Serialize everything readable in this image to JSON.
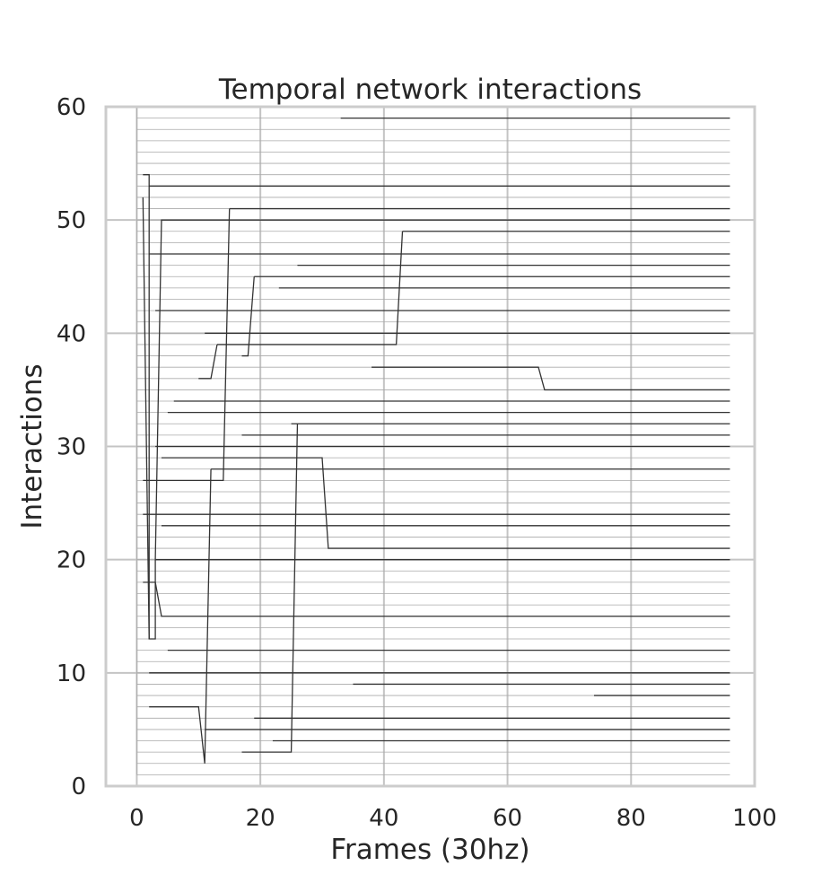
{
  "chart_data": {
    "type": "line",
    "title": "Temporal network interactions",
    "xlabel": "Frames (30hz)",
    "ylabel": "Interactions",
    "xlim": [
      -5,
      100
    ],
    "ylim": [
      0,
      60
    ],
    "x_ticks": [
      0,
      20,
      40,
      60,
      80,
      100
    ],
    "y_ticks": [
      0,
      10,
      20,
      30,
      40,
      50,
      60
    ],
    "grid": true,
    "baseline_lines": {
      "y_from": 1,
      "y_to": 60,
      "x_start": 0,
      "x_end": 96,
      "color": "#aaaaaa"
    },
    "series": [
      {
        "color": "#333333",
        "points": [
          [
            23,
            60
          ],
          [
            96,
            60
          ]
        ]
      },
      {
        "color": "#333333",
        "points": [
          [
            33,
            59
          ],
          [
            96,
            59
          ]
        ]
      },
      {
        "color": "#333333",
        "points": [
          [
            1,
            54
          ],
          [
            2,
            54
          ],
          [
            2,
            13
          ],
          [
            3,
            13
          ],
          [
            3,
            20
          ],
          [
            3,
            18
          ],
          [
            1,
            18
          ]
        ]
      },
      {
        "color": "#333333",
        "points": [
          [
            1,
            52
          ],
          [
            2,
            13
          ]
        ]
      },
      {
        "color": "#333333",
        "points": [
          [
            2,
            53
          ],
          [
            96,
            53
          ]
        ]
      },
      {
        "color": "#333333",
        "points": [
          [
            15,
            51
          ],
          [
            96,
            51
          ]
        ]
      },
      {
        "color": "#333333",
        "points": [
          [
            3,
            20
          ],
          [
            4,
            50
          ],
          [
            96,
            50
          ]
        ]
      },
      {
        "color": "#333333",
        "points": [
          [
            43,
            49
          ],
          [
            96,
            49
          ]
        ]
      },
      {
        "color": "#333333",
        "points": [
          [
            2,
            47
          ],
          [
            96,
            47
          ]
        ]
      },
      {
        "color": "#333333",
        "points": [
          [
            26,
            46
          ],
          [
            96,
            46
          ]
        ]
      },
      {
        "color": "#333333",
        "points": [
          [
            19,
            45
          ],
          [
            96,
            45
          ]
        ]
      },
      {
        "color": "#333333",
        "points": [
          [
            23,
            44
          ],
          [
            96,
            44
          ]
        ]
      },
      {
        "color": "#333333",
        "points": [
          [
            3,
            42
          ],
          [
            96,
            42
          ]
        ]
      },
      {
        "color": "#333333",
        "points": [
          [
            11,
            40
          ],
          [
            96,
            40
          ]
        ]
      },
      {
        "color": "#333333",
        "points": [
          [
            13,
            39
          ],
          [
            42,
            39
          ],
          [
            43,
            49
          ]
        ]
      },
      {
        "color": "#333333",
        "points": [
          [
            17,
            38
          ],
          [
            18,
            38
          ],
          [
            19,
            45
          ]
        ]
      },
      {
        "color": "#333333",
        "points": [
          [
            38,
            37
          ],
          [
            65,
            37
          ],
          [
            66,
            35
          ],
          [
            96,
            35
          ]
        ]
      },
      {
        "color": "#333333",
        "points": [
          [
            10,
            36
          ],
          [
            12,
            36
          ],
          [
            13,
            39
          ]
        ]
      },
      {
        "color": "#333333",
        "points": [
          [
            6,
            34
          ],
          [
            96,
            34
          ]
        ]
      },
      {
        "color": "#333333",
        "points": [
          [
            5,
            33
          ],
          [
            96,
            33
          ]
        ]
      },
      {
        "color": "#333333",
        "points": [
          [
            25,
            32
          ],
          [
            26,
            32
          ],
          [
            96,
            32
          ]
        ]
      },
      {
        "color": "#333333",
        "points": [
          [
            17,
            31
          ],
          [
            96,
            31
          ]
        ]
      },
      {
        "color": "#333333",
        "points": [
          [
            3,
            30
          ],
          [
            96,
            30
          ]
        ]
      },
      {
        "color": "#333333",
        "points": [
          [
            4,
            29
          ],
          [
            30,
            29
          ],
          [
            31,
            21
          ],
          [
            96,
            21
          ]
        ]
      },
      {
        "color": "#333333",
        "points": [
          [
            12,
            28
          ],
          [
            96,
            28
          ]
        ]
      },
      {
        "color": "#333333",
        "points": [
          [
            1,
            27
          ],
          [
            14,
            27
          ],
          [
            15,
            51
          ]
        ]
      },
      {
        "color": "#333333",
        "points": [
          [
            1,
            24
          ],
          [
            96,
            24
          ]
        ]
      },
      {
        "color": "#333333",
        "points": [
          [
            4,
            23
          ],
          [
            96,
            23
          ]
        ]
      },
      {
        "color": "#333333",
        "points": [
          [
            3,
            20
          ],
          [
            96,
            20
          ]
        ]
      },
      {
        "color": "#333333",
        "points": [
          [
            3,
            18
          ],
          [
            4,
            15
          ],
          [
            96,
            15
          ]
        ]
      },
      {
        "color": "#333333",
        "points": [
          [
            5,
            12
          ],
          [
            96,
            12
          ]
        ]
      },
      {
        "color": "#333333",
        "points": [
          [
            2,
            10
          ],
          [
            96,
            10
          ]
        ]
      },
      {
        "color": "#333333",
        "points": [
          [
            35,
            9
          ],
          [
            96,
            9
          ]
        ]
      },
      {
        "color": "#333333",
        "points": [
          [
            74,
            8
          ],
          [
            96,
            8
          ]
        ]
      },
      {
        "color": "#333333",
        "points": [
          [
            2,
            7
          ],
          [
            10,
            7
          ],
          [
            11,
            2
          ],
          [
            12,
            28
          ]
        ]
      },
      {
        "color": "#333333",
        "points": [
          [
            19,
            6
          ],
          [
            96,
            6
          ]
        ]
      },
      {
        "color": "#333333",
        "points": [
          [
            11,
            5
          ],
          [
            96,
            5
          ]
        ]
      },
      {
        "color": "#333333",
        "points": [
          [
            22,
            4
          ],
          [
            96,
            4
          ]
        ]
      },
      {
        "color": "#333333",
        "points": [
          [
            17,
            3
          ],
          [
            25,
            3
          ],
          [
            26,
            32
          ]
        ]
      }
    ]
  }
}
